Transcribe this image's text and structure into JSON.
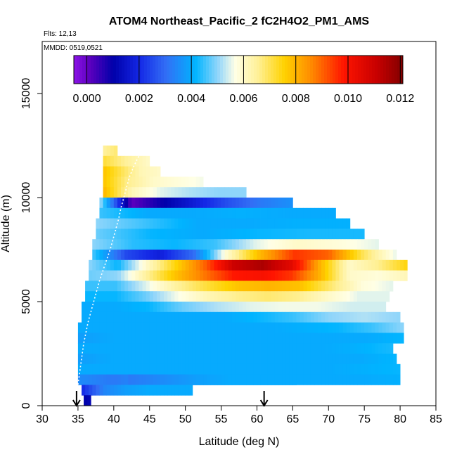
{
  "chart_data": {
    "type": "heatmap",
    "title": "ATOM4 Northeast_Pacific_2 fC2H4O2_PM1_AMS",
    "flights_label": "Flts: 12,13",
    "dates_label": "MMDD: 0519,0521",
    "xlabel": "Latitude (deg N)",
    "ylabel": "Altitude (m)",
    "xlim": [
      30,
      85
    ],
    "ylim": [
      0,
      17500
    ],
    "xticks": [
      "30",
      "35",
      "40",
      "45",
      "50",
      "55",
      "60",
      "65",
      "70",
      "75",
      "80",
      "85"
    ],
    "yticks": [
      "0",
      "5000",
      "10000",
      "15000"
    ],
    "colorbar": {
      "range": [
        -0.0005,
        0.0121
      ],
      "tick_values": [
        0.0,
        0.002,
        0.004,
        0.006,
        0.008,
        0.01,
        0.012
      ],
      "tick_labels": [
        "0.000",
        "0.002",
        "0.004",
        "0.006",
        "0.008",
        "0.010",
        "0.012"
      ]
    },
    "arrows_lat": [
      34.8,
      61.0
    ],
    "layers": [
      {
        "alt": [
          12000,
          12500
        ],
        "lat": [
          38.5,
          40.5
        ],
        "v": [
          0.0065,
          0.0068
        ]
      },
      {
        "alt": [
          11500,
          12000
        ],
        "lat": [
          38.5,
          45
        ],
        "v": [
          0.0072,
          0.0065,
          0.006
        ]
      },
      {
        "alt": [
          11000,
          11500
        ],
        "lat": [
          38.5,
          46.5
        ],
        "v": [
          0.0078,
          0.007,
          0.0062,
          0.006
        ]
      },
      {
        "alt": [
          10500,
          11000
        ],
        "lat": [
          38.5,
          52.5
        ],
        "v": [
          0.0078,
          0.0066,
          0.006,
          0.0058,
          0.0056
        ]
      },
      {
        "alt": [
          10000,
          10500
        ],
        "lat": [
          38.5,
          58.5
        ],
        "v": [
          0.008,
          0.0062,
          0.0055,
          0.0052,
          0.005,
          0.005
        ]
      },
      {
        "alt": [
          9500,
          10000
        ],
        "lat": [
          38.0,
          65.0
        ],
        "v": [
          0.0052,
          0.0001,
          0.001,
          0.0018,
          0.0026,
          0.0032,
          0.0036
        ]
      },
      {
        "alt": [
          9000,
          9500
        ],
        "lat": [
          38.0,
          71.0
        ],
        "v": [
          0.0045,
          0.004,
          0.004,
          0.0041,
          0.004,
          0.004
        ]
      },
      {
        "alt": [
          8500,
          9000
        ],
        "lat": [
          37.5,
          73.0
        ],
        "v": [
          0.005,
          0.0045,
          0.004,
          0.004,
          0.0041,
          0.0041
        ]
      },
      {
        "alt": [
          8000,
          8500
        ],
        "lat": [
          37.5,
          75.0
        ],
        "v": [
          0.0048,
          0.0042,
          0.004,
          0.0042,
          0.0043,
          0.0043
        ]
      },
      {
        "alt": [
          7500,
          8000
        ],
        "lat": [
          37.0,
          77.0
        ],
        "v": [
          0.005,
          0.0044,
          0.0042,
          0.0045,
          0.0055,
          0.006,
          0.0058,
          0.0055
        ]
      },
      {
        "alt": [
          7000,
          7500
        ],
        "lat": [
          37.0,
          79.5
        ],
        "v": [
          0.0046,
          0.0025,
          0.0018,
          0.003,
          0.006,
          0.008,
          0.0095,
          0.009,
          0.007,
          0.0055
        ]
      },
      {
        "alt": [
          6500,
          7000
        ],
        "lat": [
          36.5,
          81.0
        ],
        "v": [
          0.005,
          0.0042,
          0.006,
          0.0075,
          0.009,
          0.011,
          0.0115,
          0.0105,
          0.008,
          0.006,
          0.0066,
          0.0075
        ]
      },
      {
        "alt": [
          6000,
          6500
        ],
        "lat": [
          36.5,
          81.0
        ],
        "v": [
          0.0048,
          0.005,
          0.0065,
          0.0078,
          0.0088,
          0.0098,
          0.01,
          0.0095,
          0.008,
          0.006,
          0.0058,
          0.0062
        ]
      },
      {
        "alt": [
          5500,
          6000
        ],
        "lat": [
          36.0,
          79.0
        ],
        "v": [
          0.0045,
          0.0045,
          0.0055,
          0.0065,
          0.0072,
          0.0078,
          0.008,
          0.0078,
          0.0068,
          0.0058,
          0.0055
        ]
      },
      {
        "alt": [
          5000,
          5500
        ],
        "lat": [
          36.0,
          78.5
        ],
        "v": [
          0.0042,
          0.0042,
          0.0048,
          0.0056,
          0.0062,
          0.0066,
          0.0068,
          0.0066,
          0.006,
          0.0055,
          0.0055
        ]
      },
      {
        "alt": [
          4500,
          5000
        ],
        "lat": [
          35.5,
          78.0
        ],
        "v": [
          0.004,
          0.004,
          0.0042,
          0.0048,
          0.0052,
          0.0055,
          0.0056,
          0.0056,
          0.0054,
          0.0054
        ]
      },
      {
        "alt": [
          4000,
          4500
        ],
        "lat": [
          35.5,
          80.0
        ],
        "v": [
          0.004,
          0.004,
          0.004,
          0.004,
          0.004,
          0.0042,
          0.0045,
          0.005,
          0.0052,
          0.005
        ]
      },
      {
        "alt": [
          3500,
          4000
        ],
        "lat": [
          35.0,
          80.5
        ],
        "v": [
          0.004,
          0.004,
          0.004,
          0.004,
          0.004,
          0.004,
          0.004,
          0.0041,
          0.0042,
          0.0045,
          0.005
        ]
      },
      {
        "alt": [
          3000,
          3500
        ],
        "lat": [
          35.0,
          80.5
        ],
        "v": [
          0.0038,
          0.004,
          0.004,
          0.004,
          0.004,
          0.004,
          0.004,
          0.004,
          0.004,
          0.0042
        ]
      },
      {
        "alt": [
          2500,
          3000
        ],
        "lat": [
          35.0,
          79.0
        ],
        "v": [
          0.004,
          0.004,
          0.004,
          0.004,
          0.004,
          0.004,
          0.004,
          0.004,
          0.0041,
          0.0043
        ]
      },
      {
        "alt": [
          2000,
          2500
        ],
        "lat": [
          35.0,
          79.5
        ],
        "v": [
          0.0038,
          0.004,
          0.004,
          0.004,
          0.004,
          0.004,
          0.004,
          0.004,
          0.004,
          0.0042
        ]
      },
      {
        "alt": [
          1500,
          2000
        ],
        "lat": [
          35.0,
          80.0
        ],
        "v": [
          0.004,
          0.004,
          0.004,
          0.004,
          0.004,
          0.004,
          0.004,
          0.004,
          0.0041,
          0.0042
        ]
      },
      {
        "alt": [
          1000,
          1500
        ],
        "lat": [
          35.0,
          80.0
        ],
        "v": [
          0.0035,
          0.0032,
          0.0036,
          0.0038,
          0.004,
          0.004,
          0.004,
          0.004,
          0.004,
          0.0041
        ]
      },
      {
        "alt": [
          1000,
          1500
        ],
        "lat": [
          42.0,
          65.5
        ],
        "v": [
          0.0032,
          0.0035,
          0.0038,
          0.004,
          0.004,
          0.004
        ]
      },
      {
        "alt": [
          500,
          1000
        ],
        "lat": [
          35.5,
          51.0
        ],
        "v": [
          0.002,
          0.0034,
          0.0038,
          0.004,
          0.004,
          0.004
        ]
      },
      {
        "alt": [
          0,
          500
        ],
        "lat": [
          35.8,
          36.8
        ],
        "v": [
          0.001,
          0.0012
        ]
      }
    ],
    "track": [
      [
        35.0,
        0
      ],
      [
        34.9,
        500
      ],
      [
        35.0,
        1000
      ],
      [
        35.2,
        1500
      ],
      [
        35.4,
        2000
      ],
      [
        35.6,
        2500
      ],
      [
        35.8,
        3000
      ],
      [
        36.1,
        3500
      ],
      [
        36.4,
        4000
      ],
      [
        36.8,
        4500
      ],
      [
        37.2,
        5000
      ],
      [
        37.6,
        5500
      ],
      [
        38.0,
        6000
      ],
      [
        38.5,
        6500
      ],
      [
        39.0,
        7000
      ],
      [
        39.5,
        7500
      ],
      [
        39.9,
        8000
      ],
      [
        40.3,
        8500
      ],
      [
        40.7,
        9000
      ],
      [
        41.0,
        9500
      ],
      [
        41.4,
        10000
      ],
      [
        41.8,
        10500
      ],
      [
        42.2,
        11000
      ],
      [
        42.8,
        11500
      ],
      [
        43.5,
        12000
      ],
      [
        44.2,
        12200
      ]
    ]
  }
}
